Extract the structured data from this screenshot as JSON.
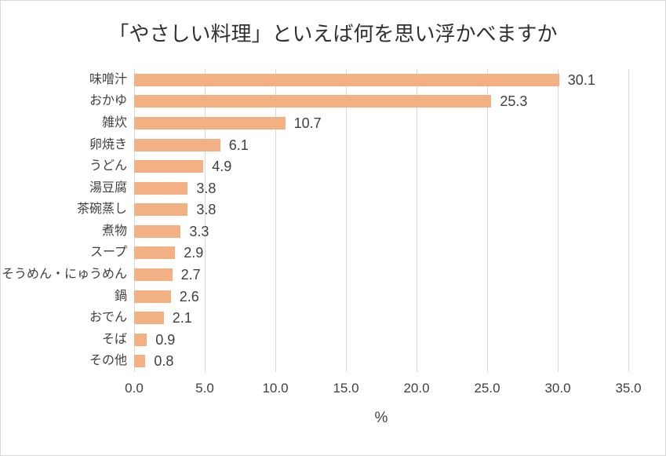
{
  "chart_data": {
    "type": "bar",
    "orientation": "horizontal",
    "title": "「やさしい料理」といえば何を思い浮かべますか",
    "categories": [
      "味噌汁",
      "おかゆ",
      "雑炊",
      "卵焼き",
      "うどん",
      "湯豆腐",
      "茶碗蒸し",
      "煮物",
      "スープ",
      "そうめん・にゅうめん",
      "鍋",
      "おでん",
      "そば",
      "その他"
    ],
    "values": [
      30.1,
      25.3,
      10.7,
      6.1,
      4.9,
      3.8,
      3.8,
      3.3,
      2.9,
      2.7,
      2.6,
      2.1,
      0.9,
      0.8
    ],
    "value_label_decimals": 1,
    "xlabel": "%",
    "xlim": [
      0,
      35
    ],
    "xticks": [
      0,
      5,
      10,
      15,
      20,
      25,
      30,
      35
    ],
    "xtick_labels": [
      "0.0",
      "5.0",
      "10.0",
      "15.0",
      "20.0",
      "25.0",
      "30.0",
      "35.0"
    ],
    "grid": true,
    "legend": false,
    "colors": {
      "bar": "#F3B183",
      "gridline": "#D9D9D9",
      "text": "#404040",
      "title": "#303030",
      "background": "#FFFFFF",
      "frame_border": "#D9D9D9"
    }
  }
}
